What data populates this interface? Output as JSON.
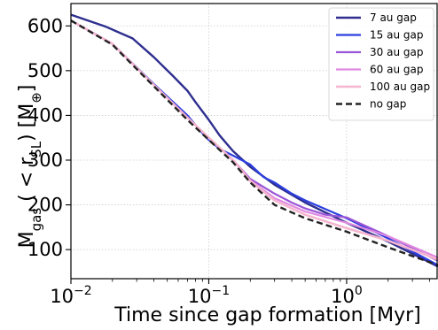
{
  "chart_data": {
    "type": "line",
    "title": "",
    "xlabel": "Time since gap formation [Myr]",
    "ylabel": {
      "main": "M",
      "sub": "gas",
      "paren_open": " ( < r",
      "paren_sub": "SL",
      "paren_close": ") [M",
      "unit_symbol": "⊕",
      "end": "]"
    },
    "xscale": "log",
    "xlim": [
      0.01,
      4.6
    ],
    "ylim": [
      35,
      650
    ],
    "x_ticks": [
      {
        "value": 0.01,
        "base": "10",
        "exp": "−2"
      },
      {
        "value": 0.1,
        "base": "10",
        "exp": "−1"
      },
      {
        "value": 1,
        "base": "10",
        "exp": "0"
      }
    ],
    "y_ticks": [
      100,
      200,
      300,
      400,
      500,
      600
    ],
    "grid": true,
    "legend_position": "top-right",
    "series": [
      {
        "name": "7 au gap",
        "color": "#2e2e8f",
        "width": 2.4,
        "dash": "",
        "x": [
          0.01,
          0.018,
          0.028,
          0.04,
          0.055,
          0.07,
          0.08,
          0.1,
          0.12,
          0.15,
          0.2,
          0.3,
          0.5,
          1.0,
          2.0,
          4.6
        ],
        "y": [
          625,
          598,
          572,
          530,
          488,
          455,
          430,
          390,
          355,
          320,
          285,
          245,
          205,
          160,
          118,
          62
        ]
      },
      {
        "name": "15 au gap",
        "color": "#2b3ee0",
        "width": 2.2,
        "dash": "",
        "x": [
          0.01,
          0.02,
          0.04,
          0.07,
          0.09,
          0.1,
          0.12,
          0.15,
          0.2,
          0.25,
          0.3,
          0.4,
          0.5,
          1.0,
          2.0,
          4.6
        ],
        "y": [
          612,
          560,
          470,
          400,
          360,
          345,
          325,
          310,
          290,
          262,
          250,
          225,
          210,
          170,
          125,
          65
        ]
      },
      {
        "name": "30 au gap",
        "color": "#9a55d6",
        "width": 2.2,
        "dash": "",
        "x": [
          0.01,
          0.02,
          0.04,
          0.07,
          0.1,
          0.15,
          0.2,
          0.3,
          0.4,
          0.5,
          0.7,
          1.0,
          2.0,
          4.6
        ],
        "y": [
          612,
          560,
          468,
          395,
          350,
          300,
          258,
          225,
          205,
          192,
          178,
          172,
          130,
          75
        ]
      },
      {
        "name": "60 au gap",
        "color": "#e08ae0",
        "width": 2.2,
        "dash": "",
        "x": [
          0.01,
          0.02,
          0.04,
          0.07,
          0.1,
          0.15,
          0.2,
          0.3,
          0.5,
          1.0,
          2.0,
          4.6
        ],
        "y": [
          612,
          560,
          468,
          395,
          350,
          300,
          255,
          215,
          185,
          160,
          130,
          82
        ]
      },
      {
        "name": "100 au gap",
        "color": "#f5b5cf",
        "width": 2.6,
        "dash": "",
        "x": [
          0.01,
          0.02,
          0.04,
          0.07,
          0.1,
          0.15,
          0.2,
          0.3,
          0.5,
          1.0,
          2.0,
          4.6
        ],
        "y": [
          612,
          560,
          468,
          395,
          350,
          300,
          253,
          210,
          178,
          148,
          120,
          78
        ]
      },
      {
        "name": "no gap",
        "color": "#222222",
        "width": 2.4,
        "dash": "7 4",
        "x": [
          0.01,
          0.02,
          0.04,
          0.07,
          0.1,
          0.15,
          0.2,
          0.3,
          0.5,
          1.0,
          2.0,
          4.6
        ],
        "y": [
          612,
          558,
          465,
          390,
          345,
          295,
          250,
          200,
          170,
          140,
          105,
          65
        ]
      }
    ]
  }
}
